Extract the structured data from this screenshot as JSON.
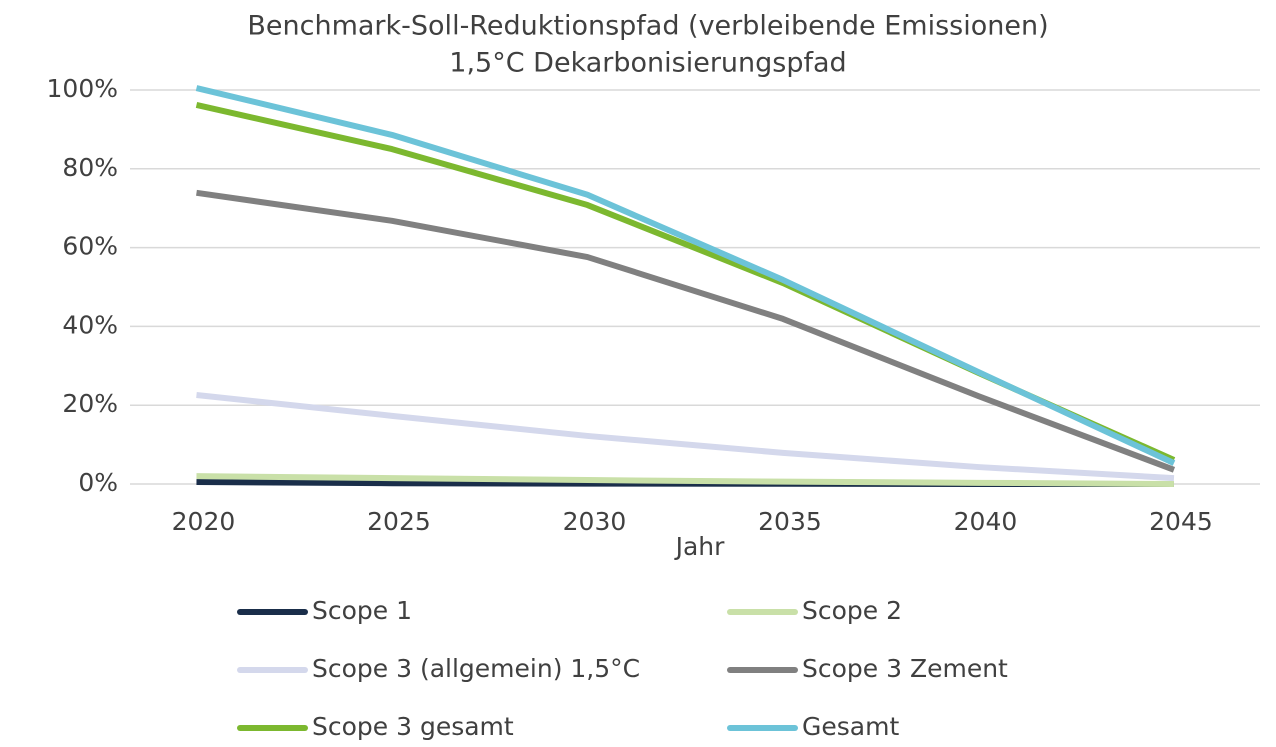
{
  "chart_data": {
    "type": "line",
    "title": "Benchmark-Soll-Reduktionspfad (verbleibende Emissionen)",
    "subtitle": "1,5°C Dekarbonisierungspfad",
    "x_label": "Jahr",
    "x": [
      2020,
      2025,
      2030,
      2035,
      2040,
      2045
    ],
    "xlim": [
      2018.3,
      2047.2
    ],
    "xticks": [
      2020,
      2025,
      2030,
      2035,
      2040,
      2045
    ],
    "ylim": [
      0,
      100
    ],
    "yticks": [
      {
        "value": 0,
        "label": "0%"
      },
      {
        "value": 20,
        "label": "20%"
      },
      {
        "value": 40,
        "label": "40%"
      },
      {
        "value": 60,
        "label": "60%"
      },
      {
        "value": 80,
        "label": "80%"
      },
      {
        "value": 100,
        "label": "100%"
      }
    ],
    "grid": true,
    "legend": "bottom",
    "series": [
      {
        "name": "Scope 1",
        "color": "#1a2e4a",
        "values": [
          0.5,
          0.2,
          0.1,
          0.05,
          0,
          0
        ]
      },
      {
        "name": "Scope 2",
        "color": "#c9e0a8",
        "values": [
          2.0,
          1.5,
          1.0,
          0.6,
          0.3,
          0
        ]
      },
      {
        "name": "Scope 3 (allgemein) 1,5°C",
        "color": "#d4d8ec",
        "values": [
          22.6,
          17.3,
          12.2,
          7.9,
          4.3,
          1.5
        ]
      },
      {
        "name": "Scope 3 Zement",
        "color": "#808080",
        "values": [
          73.9,
          66.8,
          57.6,
          41.9,
          22.3,
          3.6
        ]
      },
      {
        "name": "Scope 3 gesamt",
        "color": "#7cb82f",
        "values": [
          96.2,
          85.0,
          70.8,
          51.0,
          28.2,
          6.1
        ]
      },
      {
        "name": "Gesamt",
        "color": "#6cc3d8",
        "values": [
          100.5,
          88.6,
          73.4,
          51.8,
          28.4,
          5.3
        ]
      }
    ]
  }
}
